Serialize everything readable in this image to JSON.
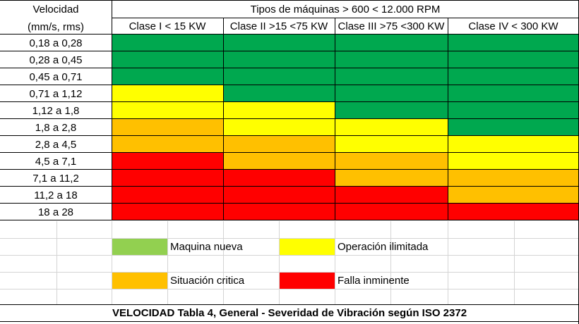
{
  "header": {
    "velocity_line1": "Velocidad",
    "velocity_line2": "(mm/s, rms)",
    "machine_types": "Tipos de máquinas > 600 < 12.000 RPM",
    "classes": [
      "Clase I < 15 KW",
      "Clase II >15 <75 KW",
      "Clase III >75 <300 KW",
      "Clase IV < 300 KW"
    ]
  },
  "rows": [
    {
      "range": "0,18 a 0,28",
      "levels": [
        "green",
        "green",
        "green",
        "green"
      ]
    },
    {
      "range": "0,28 a 0,45",
      "levels": [
        "green",
        "green",
        "green",
        "green"
      ]
    },
    {
      "range": "0,45 a 0,71",
      "levels": [
        "green",
        "green",
        "green",
        "green"
      ]
    },
    {
      "range": "0,71 a 1,12",
      "levels": [
        "yellow",
        "green",
        "green",
        "green"
      ]
    },
    {
      "range": "1,12 a 1,8",
      "levels": [
        "yellow",
        "yellow",
        "green",
        "green"
      ]
    },
    {
      "range": "1,8 a 2,8",
      "levels": [
        "orange",
        "yellow",
        "yellow",
        "green"
      ]
    },
    {
      "range": "2,8 a 4,5",
      "levels": [
        "orange",
        "orange",
        "yellow",
        "yellow"
      ]
    },
    {
      "range": "4,5 a 7,1",
      "levels": [
        "red",
        "orange",
        "orange",
        "yellow"
      ]
    },
    {
      "range": "7,1 a 11,2",
      "levels": [
        "red",
        "red",
        "orange",
        "orange"
      ]
    },
    {
      "range": "11,2 a 18",
      "levels": [
        "red",
        "red",
        "red",
        "orange"
      ]
    },
    {
      "range": "18 a 28",
      "levels": [
        "red",
        "red",
        "red",
        "red"
      ]
    }
  ],
  "colors": {
    "green": "#00a84f",
    "yellow": "#ffff00",
    "orange": "#ffc000",
    "red": "#ff0000",
    "legend_green": "#92d050"
  },
  "legend": {
    "nueva": "Maquina nueva",
    "ilimitada": "Operación ilimitada",
    "critica": "Situación critica",
    "inminente": "Falla inminente"
  },
  "footer": "VELOCIDAD Tabla 4, General - Severidad de Vibración según ISO 2372"
}
